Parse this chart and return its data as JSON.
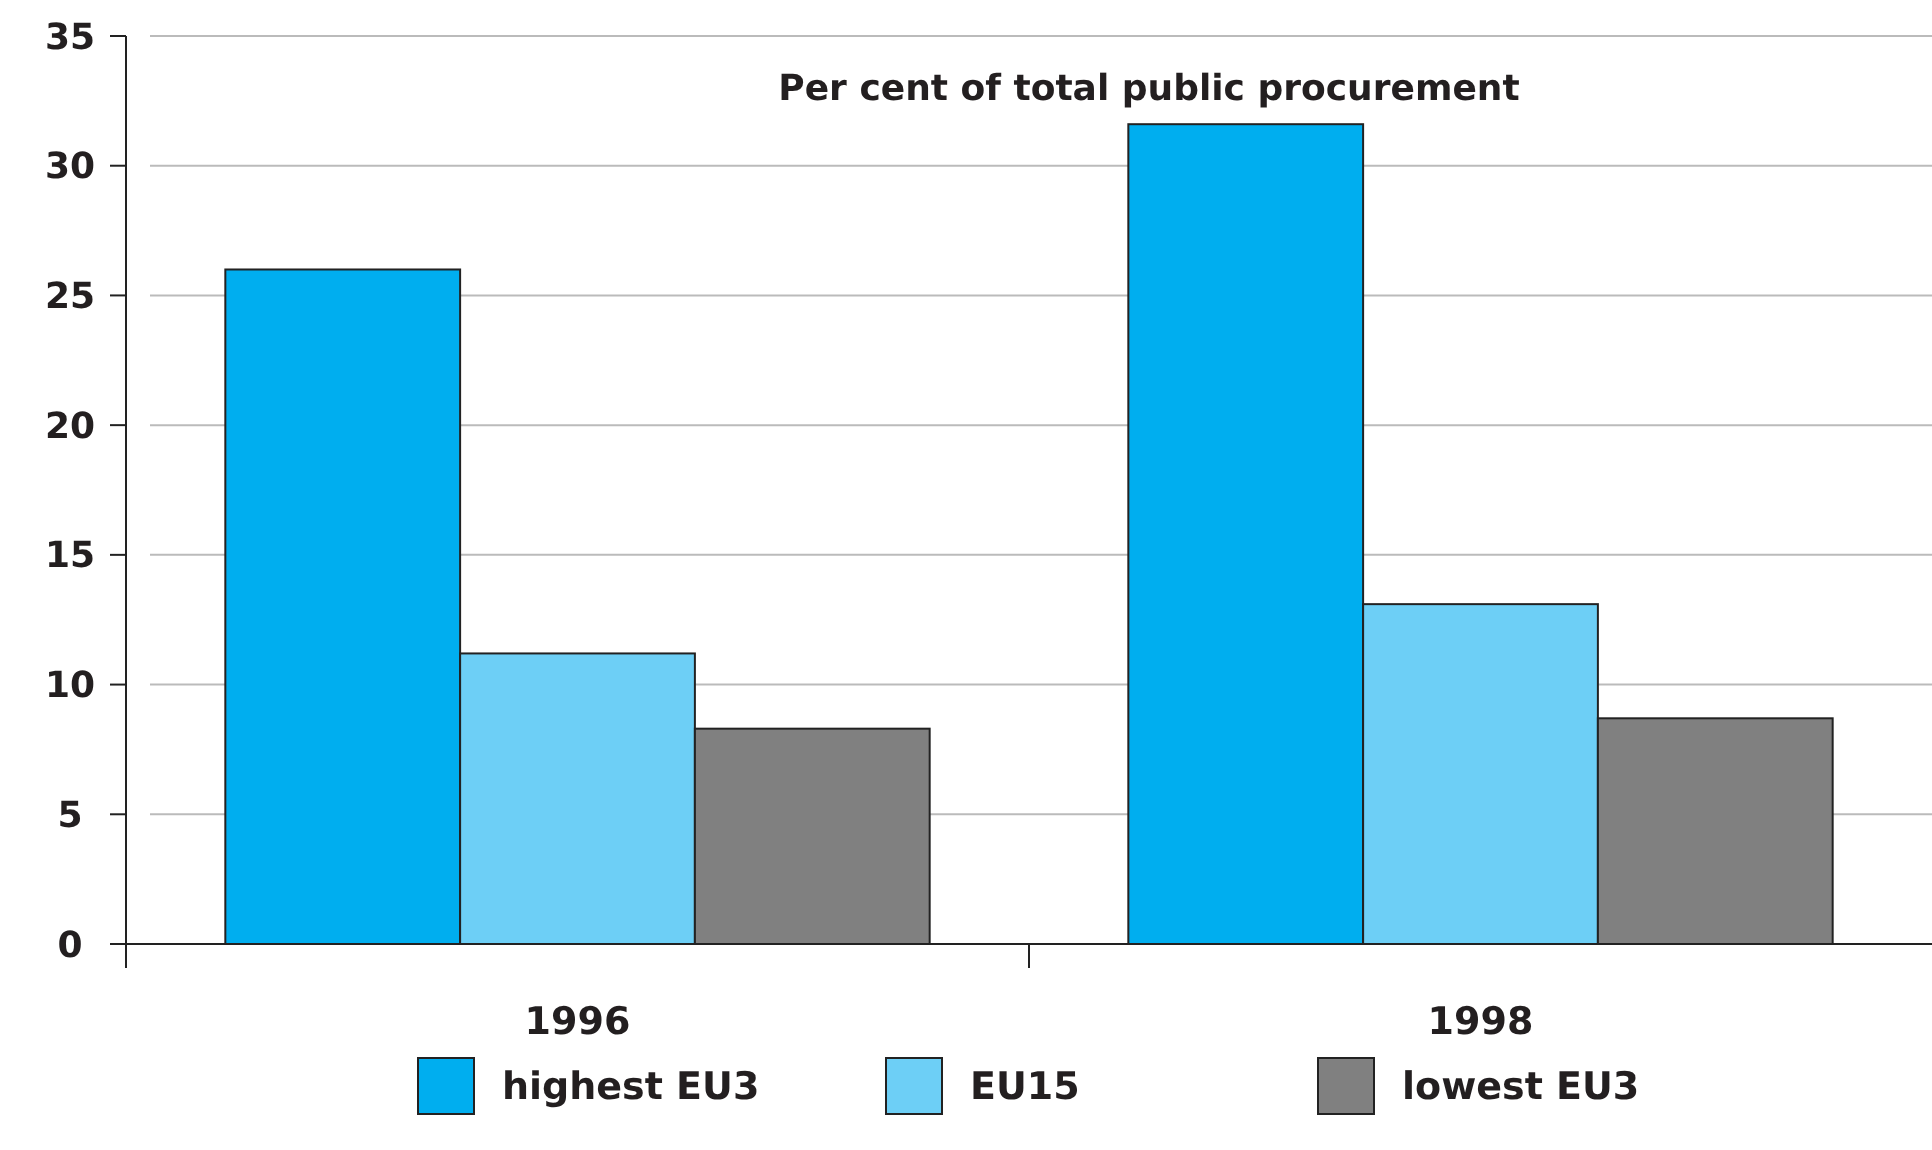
{
  "chart_data": {
    "type": "bar",
    "title": "Per cent of total public procurement",
    "categories": [
      "1996",
      "1998"
    ],
    "series": [
      {
        "name": "highest EU3",
        "color": "#00aeef",
        "values": [
          26,
          31.6
        ]
      },
      {
        "name": "EU15",
        "color": "#6dcff6",
        "values": [
          11.2,
          13.1
        ]
      },
      {
        "name": "lowest EU3",
        "color": "#808080",
        "values": [
          8.3,
          8.7
        ]
      }
    ],
    "ylim": [
      0,
      35
    ],
    "yticks": [
      0,
      5,
      10,
      15,
      20,
      25,
      30,
      35
    ],
    "grid": "y",
    "legend": "bottom"
  }
}
